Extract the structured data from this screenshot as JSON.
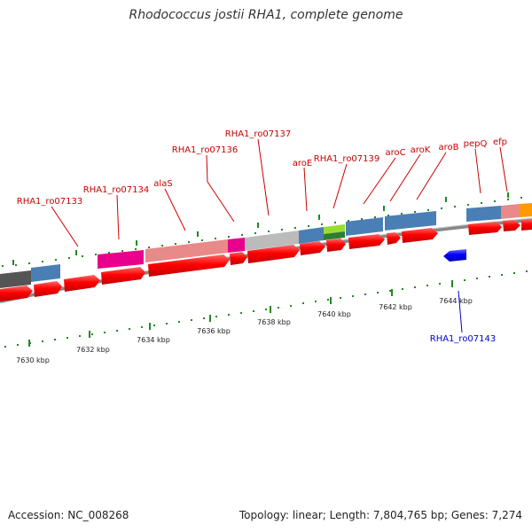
{
  "title": "Rhodococcus jostii RHA1, complete genome",
  "footer": {
    "accession": "Accession: NC_008268",
    "topology": "Topology: linear; Length: 7,804,765 bp; Genes: 7,274"
  },
  "gene_labels": {
    "g1": "RHA1_ro07133",
    "g2": "RHA1_ro07134",
    "g3": "alaS",
    "g4": "RHA1_ro07136",
    "g5": "RHA1_ro07137",
    "g6": "aroE",
    "g7": "RHA1_ro07139",
    "g8": "aroC",
    "g9": "aroK",
    "g10": "aroB",
    "g11": "pepQ",
    "g12": "efp",
    "g13": "RHA1_ro07143"
  },
  "kbp_labels": {
    "k1": "7630 kbp",
    "k2": "7632 kbp",
    "k3": "7634 kbp",
    "k4": "7636 kbp",
    "k5": "7638 kbp",
    "k6": "7640 kbp",
    "k7": "7642 kbp",
    "k8": "7644 kbp"
  },
  "colors": {
    "forward_gene": "#ff0000",
    "reverse_gene": "#0000ff",
    "forward_label": "#cc0000",
    "reverse_label": "#0000cc",
    "tick": "#228822",
    "backbone": "#888888"
  }
}
